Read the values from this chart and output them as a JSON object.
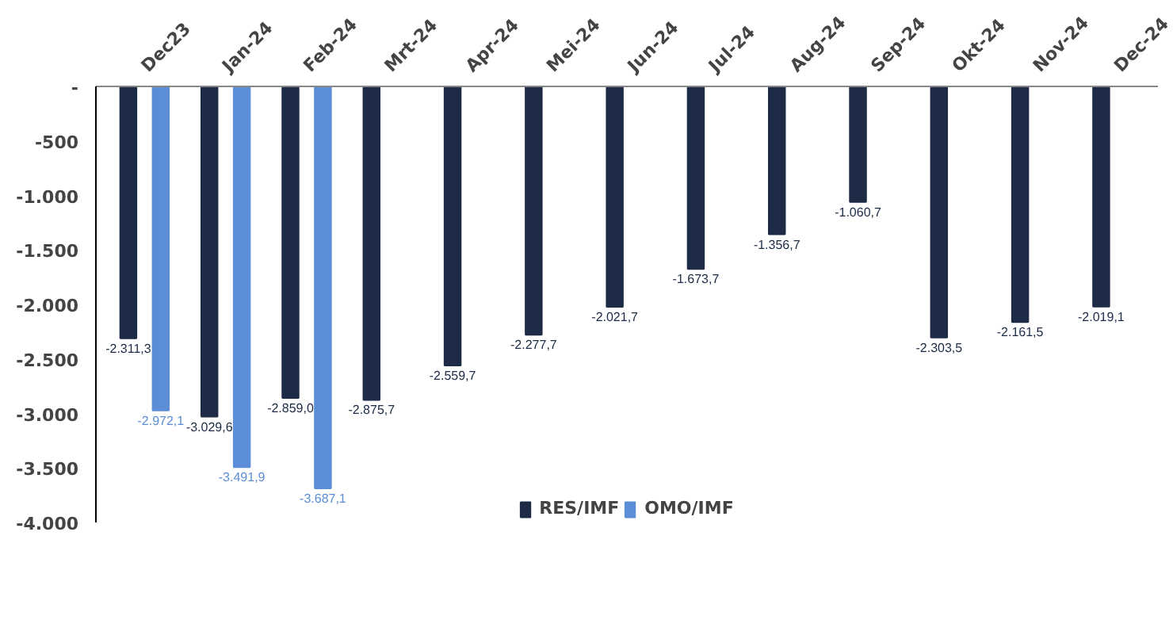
{
  "chart_data": {
    "type": "bar",
    "categories": [
      "Dec23",
      "Jan-24",
      "Feb-24",
      "Mrt-24",
      "Apr-24",
      "Mei-24",
      "Jun-24",
      "Jul-24",
      "Aug-24",
      "Sep-24",
      "Okt-24",
      "Nov-24",
      "Dec-24"
    ],
    "ylim": [
      -4000,
      0
    ],
    "yticks": [
      {
        "value": 0,
        "label": "-"
      },
      {
        "value": -500,
        "label": "-500"
      },
      {
        "value": -1000,
        "label": "-1.000"
      },
      {
        "value": -1500,
        "label": "-1.500"
      },
      {
        "value": -2000,
        "label": "-2.000"
      },
      {
        "value": -2500,
        "label": "-2.500"
      },
      {
        "value": -3000,
        "label": "-3.000"
      },
      {
        "value": -3500,
        "label": "-3.500"
      },
      {
        "value": -4000,
        "label": "-4.000"
      }
    ],
    "series": [
      {
        "name": "RES/IMF",
        "color": "#1d2b47",
        "values": [
          -2311.3,
          -3029.6,
          -2859.0,
          -2875.7,
          -2559.7,
          -2277.7,
          -2021.7,
          -1673.7,
          -1356.7,
          -1060.7,
          -2303.5,
          -2161.5,
          -2019.1
        ],
        "value_labels": [
          "-2.311,3",
          "-3.029,6",
          "-2.859,0",
          "-2.875,7",
          "-2.559,7",
          "-2.277,7",
          "-2.021,7",
          "-1.673,7",
          "-1.356,7",
          "-1.060,7",
          "-2.303,5",
          "-2.161,5",
          "-2.019,1"
        ]
      },
      {
        "name": "OMO/IMF",
        "color": "#5b8ed6",
        "values": [
          -2972.1,
          -3491.9,
          -3687.1,
          null,
          null,
          null,
          null,
          null,
          null,
          null,
          null,
          null,
          null
        ],
        "value_labels": [
          "-2.972,1",
          "-3.491,9",
          "-3.687,1",
          null,
          null,
          null,
          null,
          null,
          null,
          null,
          null,
          null,
          null
        ]
      }
    ],
    "grid": false,
    "legend": "bottom"
  }
}
